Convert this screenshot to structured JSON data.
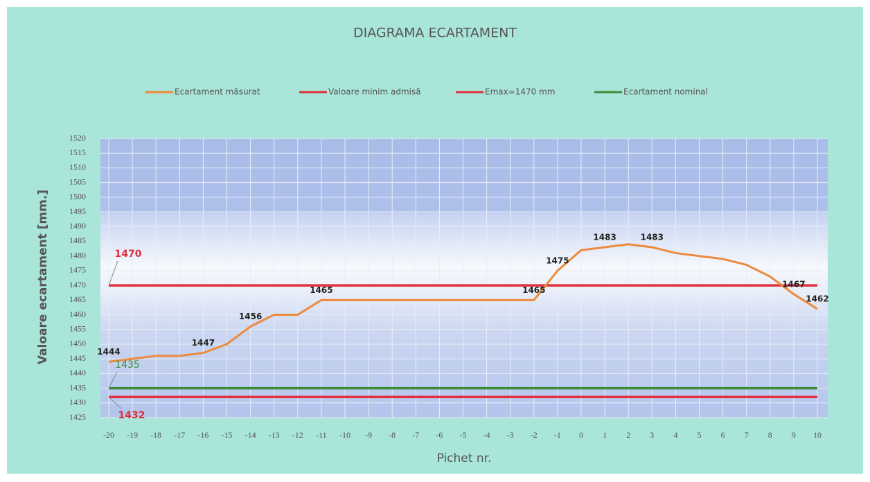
{
  "chart_data": {
    "type": "line",
    "title": "DIAGRAMA ECARTAMENT",
    "x_label": "Pichet nr.",
    "y_label": "Valoare ecartament [mm.]",
    "x": [
      -20,
      -19,
      -18,
      -17,
      -16,
      -15,
      -14,
      -13,
      -12,
      -11,
      -10,
      -9,
      -8,
      -7,
      -6,
      -5,
      -4,
      -3,
      -2,
      -1,
      0,
      1,
      2,
      3,
      4,
      5,
      6,
      7,
      8,
      9,
      10
    ],
    "xlim": [
      -20,
      10
    ],
    "xticks": [
      -20,
      -19,
      -18,
      -17,
      -16,
      -15,
      -14,
      -13,
      -12,
      -11,
      -10,
      -9,
      -8,
      -7,
      -6,
      -5,
      -4,
      -3,
      -2,
      -1,
      0,
      1,
      2,
      3,
      4,
      5,
      6,
      7,
      8,
      9,
      10
    ],
    "ylim": [
      1425,
      1520
    ],
    "yticks": [
      1425,
      1430,
      1435,
      1440,
      1445,
      1450,
      1455,
      1460,
      1465,
      1470,
      1475,
      1480,
      1485,
      1490,
      1495,
      1500,
      1505,
      1510,
      1515,
      1520
    ],
    "grid": true,
    "series": [
      {
        "name": "Ecartament măsurat",
        "color": "#ed8a3c",
        "values": [
          1444,
          1445,
          1446,
          1446,
          1447,
          1450,
          1456,
          1460,
          1460,
          1465,
          1465,
          1465,
          1465,
          1465,
          1465,
          1465,
          1465,
          1465,
          1465,
          1475,
          1482,
          1483,
          1484,
          1483,
          1481,
          1480,
          1479,
          1477,
          1473,
          1467,
          1462
        ],
        "value_labels": [
          "1444",
          null,
          null,
          null,
          "1447",
          null,
          "1456",
          null,
          null,
          "1465",
          null,
          null,
          null,
          null,
          null,
          null,
          null,
          null,
          "1465",
          "1475",
          null,
          "1483",
          null,
          "1483",
          null,
          null,
          null,
          null,
          null,
          "1467",
          "1462"
        ]
      },
      {
        "name": "Valoare minim admisă",
        "color": "#e0303c",
        "values": [
          1432,
          1432,
          1432,
          1432,
          1432,
          1432,
          1432,
          1432,
          1432,
          1432,
          1432,
          1432,
          1432,
          1432,
          1432,
          1432,
          1432,
          1432,
          1432,
          1432,
          1432,
          1432,
          1432,
          1432,
          1432,
          1432,
          1432,
          1432,
          1432,
          1432,
          1432
        ]
      },
      {
        "name": "Emax=1470 mm",
        "color": "#e0303c",
        "values": [
          1470,
          1470,
          1470,
          1470,
          1470,
          1470,
          1470,
          1470,
          1470,
          1470,
          1470,
          1470,
          1470,
          1470,
          1470,
          1470,
          1470,
          1470,
          1470,
          1470,
          1470,
          1470,
          1470,
          1470,
          1470,
          1470,
          1470,
          1470,
          1470,
          1470,
          1470
        ]
      },
      {
        "name": "Ecartament nominal",
        "color": "#3e8a3a",
        "values": [
          1435,
          1435,
          1435,
          1435,
          1435,
          1435,
          1435,
          1435,
          1435,
          1435,
          1435,
          1435,
          1435,
          1435,
          1435,
          1435,
          1435,
          1435,
          1435,
          1435,
          1435,
          1435,
          1435,
          1435,
          1435,
          1435,
          1435,
          1435,
          1435,
          1435,
          1435
        ]
      }
    ],
    "annotations": [
      "1470",
      "1435",
      "1432"
    ]
  }
}
